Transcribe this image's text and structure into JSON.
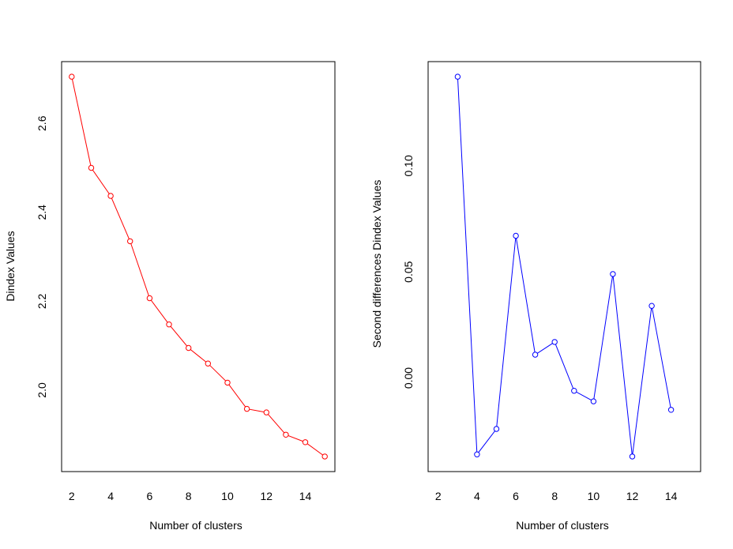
{
  "chart_data": [
    {
      "type": "line",
      "title": "",
      "xlabel": "Number of clusters",
      "ylabel": "Dindex Values",
      "x": [
        2,
        3,
        4,
        5,
        6,
        7,
        8,
        9,
        10,
        11,
        12,
        13,
        14,
        15
      ],
      "values": [
        2.705,
        2.5,
        2.437,
        2.335,
        2.207,
        2.148,
        2.095,
        2.06,
        2.017,
        1.958,
        1.95,
        1.9,
        1.883,
        1.851
      ],
      "xticks": [
        2,
        4,
        6,
        8,
        10,
        12,
        14
      ],
      "xtick_labels": [
        "2",
        "4",
        "6",
        "8",
        "10",
        "12",
        "14"
      ],
      "yticks": [
        2.0,
        2.2,
        2.4,
        2.6
      ],
      "ytick_labels": [
        "2.0",
        "2.2",
        "2.4",
        "2.6"
      ],
      "xlim": [
        1.48,
        15.52
      ],
      "ylim": [
        1.817,
        2.739
      ],
      "color": "#ff0000",
      "markers": "open-circle",
      "grid": false
    },
    {
      "type": "line",
      "title": "",
      "xlabel": "Number of clusters",
      "ylabel": "Second differences Dindex Values",
      "x": [
        3,
        4,
        5,
        6,
        7,
        8,
        9,
        10,
        11,
        12,
        13,
        14
      ],
      "values": [
        0.142,
        -0.036,
        -0.024,
        0.067,
        0.011,
        0.017,
        -0.006,
        -0.011,
        0.049,
        -0.037,
        0.034,
        -0.015
      ],
      "xticks": [
        2,
        4,
        6,
        8,
        10,
        12,
        14
      ],
      "xtick_labels": [
        "2",
        "4",
        "6",
        "8",
        "10",
        "12",
        "14"
      ],
      "yticks": [
        0.0,
        0.05,
        0.1
      ],
      "ytick_labels": [
        "0.00",
        "0.05",
        "0.10"
      ],
      "xlim": [
        1.48,
        15.52
      ],
      "ylim": [
        -0.0441,
        0.1491
      ],
      "color": "#0000ff",
      "markers": "open-circle",
      "grid": false
    }
  ]
}
